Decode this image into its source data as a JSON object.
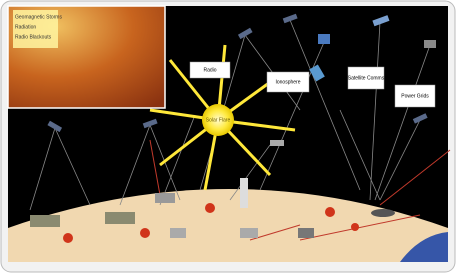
{
  "inset": {
    "lines": [
      "Geomagnetic Storms",
      "Radiation",
      "Radio Blackouts"
    ]
  },
  "sun": {
    "label": "Solar Flare"
  },
  "boxes": [
    {
      "label": "Radio"
    },
    {
      "label": "Ionosphere"
    },
    {
      "label": "Satellite Comms"
    },
    {
      "label": "Power Grids"
    }
  ]
}
